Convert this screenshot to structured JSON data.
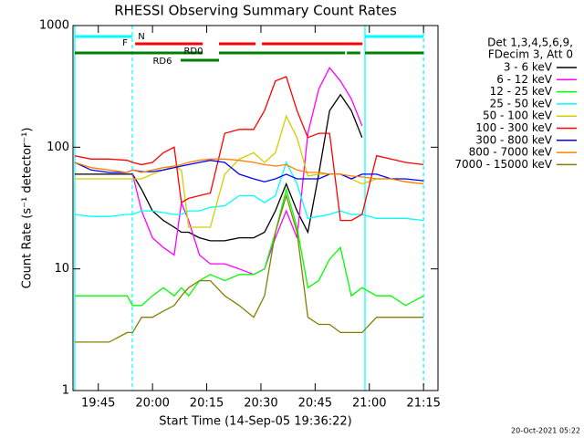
{
  "chart_data": {
    "type": "line",
    "title": "RHESSI Observing Summary Count Rates",
    "xlabel": "Start Time (14-Sep-05 19:36:22)",
    "ylabel": "Count Rate (s⁻¹ detector⁻¹)",
    "legend_header": [
      "Det 1,3,4,5,6,9,",
      "FDecim 3, Att 0"
    ],
    "timestamp": "20-Oct-2021 05:22",
    "log_y": true,
    "xlim": [
      1178,
      1279
    ],
    "ylim": [
      1,
      1000
    ],
    "yticks": [
      1,
      10,
      100,
      1000
    ],
    "xticks": [
      {
        "value": 1185,
        "label": "19:45"
      },
      {
        "value": 1200,
        "label": "20:00"
      },
      {
        "value": 1215,
        "label": "20:15"
      },
      {
        "value": 1230,
        "label": "20:30"
      },
      {
        "value": 1245,
        "label": "20:45"
      },
      {
        "value": 1260,
        "label": "21:00"
      },
      {
        "value": 1275,
        "label": "21:15"
      }
    ],
    "x": [
      1178.5,
      1183,
      1188,
      1193,
      1194.5,
      1197,
      1200,
      1203,
      1206,
      1208,
      1210,
      1213,
      1216,
      1220,
      1224,
      1228,
      1231,
      1234,
      1237,
      1240,
      1243,
      1246,
      1249,
      1252,
      1255,
      1258,
      1262,
      1266,
      1270,
      1275
    ],
    "series": [
      {
        "name": "3 - 6 keV",
        "color": "#000000",
        "values": [
          60,
          60,
          60,
          60,
          60,
          45,
          30,
          25,
          22,
          20,
          20,
          18,
          17,
          17,
          18,
          18,
          20,
          30,
          50,
          30,
          20,
          60,
          200,
          270,
          200,
          120,
          null,
          null,
          null,
          null
        ]
      },
      {
        "name": "6 - 12 keV",
        "color": "#ff00ff",
        "values": [
          null,
          null,
          null,
          null,
          60,
          30,
          18,
          15,
          13,
          35,
          25,
          13,
          11,
          11,
          10,
          9,
          10,
          18,
          30,
          18,
          130,
          300,
          450,
          350,
          250,
          150,
          null,
          null,
          null,
          null
        ]
      },
      {
        "name": "12 - 25 keV",
        "color": "#00ff00",
        "values": [
          6,
          6,
          6,
          6,
          5,
          5,
          6,
          7,
          6,
          7,
          6,
          8,
          9,
          8,
          9,
          9,
          10,
          20,
          45,
          22,
          7,
          8,
          12,
          15,
          6,
          7,
          6,
          6,
          5,
          6
        ]
      },
      {
        "name": "25 - 50 keV",
        "color": "#00ffff",
        "values": [
          28,
          27,
          27,
          28,
          28,
          30,
          30,
          29,
          28,
          28,
          30,
          30,
          32,
          33,
          40,
          40,
          35,
          40,
          75,
          50,
          26,
          27,
          28,
          30,
          28,
          28,
          26,
          26,
          26,
          25
        ]
      },
      {
        "name": "50 - 100 keV",
        "color": "#d0d000",
        "values": [
          55,
          55,
          55,
          55,
          55,
          55,
          60,
          65,
          70,
          65,
          22,
          22,
          22,
          60,
          80,
          90,
          75,
          90,
          180,
          120,
          58,
          60,
          60,
          60,
          55,
          50,
          55,
          55,
          52,
          50
        ]
      },
      {
        "name": "100 - 300 keV",
        "color": "#ff0000",
        "values": [
          85,
          80,
          80,
          78,
          75,
          72,
          75,
          90,
          100,
          35,
          38,
          40,
          42,
          130,
          140,
          140,
          200,
          350,
          380,
          200,
          120,
          130,
          130,
          25,
          25,
          28,
          85,
          80,
          75,
          72
        ]
      },
      {
        "name": "300 - 800 keV",
        "color": "#0000ff",
        "values": [
          75,
          65,
          62,
          62,
          65,
          63,
          63,
          65,
          68,
          70,
          72,
          75,
          78,
          75,
          60,
          55,
          52,
          55,
          60,
          55,
          55,
          55,
          60,
          60,
          55,
          60,
          60,
          55,
          55,
          53
        ]
      },
      {
        "name": "800 - 7000 keV",
        "color": "#ff8000",
        "values": [
          75,
          68,
          65,
          62,
          65,
          62,
          65,
          68,
          70,
          72,
          75,
          78,
          80,
          80,
          78,
          75,
          72,
          70,
          72,
          65,
          62,
          62,
          60,
          60,
          58,
          57,
          55,
          55,
          52,
          50
        ]
      },
      {
        "name": "7000 - 15000 keV",
        "color": "#808000",
        "values": [
          2.5,
          2.5,
          2.5,
          3,
          3,
          4,
          4,
          4.5,
          5,
          6,
          7,
          8,
          8,
          6,
          5,
          4,
          6,
          20,
          40,
          20,
          4,
          3.5,
          3.5,
          3,
          3,
          3,
          4,
          4,
          4,
          4
        ]
      }
    ],
    "flags": [
      {
        "label": "N",
        "color": "#00ffff",
        "ranges": [
          [
            1178.5,
            1194.4
          ],
          [
            1258.8,
            1275
          ]
        ]
      },
      {
        "label": "F",
        "color": "#ff0000",
        "ranges": [
          [
            1195.2,
            1213.9
          ],
          [
            1218.4,
            1228.5
          ],
          [
            1230.3,
            1258.1
          ]
        ]
      },
      {
        "label": "RD0",
        "color": "#008000",
        "ranges": [
          [
            1178.5,
            1213.9
          ],
          [
            1218.4,
            1253.3
          ],
          [
            1253.8,
            1257.5
          ],
          [
            1258.8,
            1275
          ]
        ]
      },
      {
        "label": "RD6",
        "color": "#008000",
        "ranges": [
          [
            1207.8,
            1218.4
          ]
        ]
      }
    ],
    "vlines": [
      {
        "x": 1178.5,
        "color": "#00ffff",
        "dashed": false
      },
      {
        "x": 1194.4,
        "color": "#00ffff",
        "dashed": true
      },
      {
        "x": 1258.8,
        "color": "#00ffff",
        "dashed": false
      },
      {
        "x": 1275,
        "color": "#00ffff",
        "dashed": true
      }
    ]
  }
}
